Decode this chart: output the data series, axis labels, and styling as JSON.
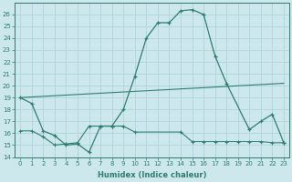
{
  "xlabel": "Humidex (Indice chaleur)",
  "xlim": [
    -0.5,
    23.5
  ],
  "ylim": [
    14,
    27
  ],
  "yticks": [
    14,
    15,
    16,
    17,
    18,
    19,
    20,
    21,
    22,
    23,
    24,
    25,
    26
  ],
  "xticks": [
    0,
    1,
    2,
    3,
    4,
    5,
    6,
    7,
    8,
    9,
    10,
    11,
    12,
    13,
    14,
    15,
    16,
    17,
    18,
    19,
    20,
    21,
    22,
    23
  ],
  "background_color": "#cde8ed",
  "grid_color": "#b0d4da",
  "line_color": "#2e7d6e",
  "line1_x": [
    0,
    1,
    2,
    3,
    4,
    5,
    6,
    7,
    8,
    9,
    10,
    11,
    12,
    13,
    14,
    15,
    16,
    17,
    18,
    20,
    21,
    22,
    23
  ],
  "line1_y": [
    19.0,
    18.5,
    16.2,
    15.8,
    15.0,
    15.1,
    14.4,
    16.6,
    16.6,
    18.0,
    20.8,
    24.0,
    25.3,
    25.3,
    26.3,
    26.4,
    26.0,
    22.5,
    20.2,
    16.3,
    17.0,
    17.6,
    15.2
  ],
  "line2_x": [
    0,
    23
  ],
  "line2_y": [
    19.0,
    20.2
  ],
  "line3_x": [
    0,
    1,
    2,
    3,
    4,
    5,
    6,
    7,
    8,
    9,
    10,
    14,
    15,
    16,
    17,
    18,
    19,
    20,
    21,
    22,
    23
  ],
  "line3_y": [
    16.2,
    16.2,
    15.7,
    15.0,
    15.1,
    15.2,
    16.6,
    16.6,
    16.6,
    16.6,
    16.1,
    16.1,
    15.3,
    15.3,
    15.3,
    15.3,
    15.3,
    15.3,
    15.3,
    15.2,
    15.2
  ]
}
